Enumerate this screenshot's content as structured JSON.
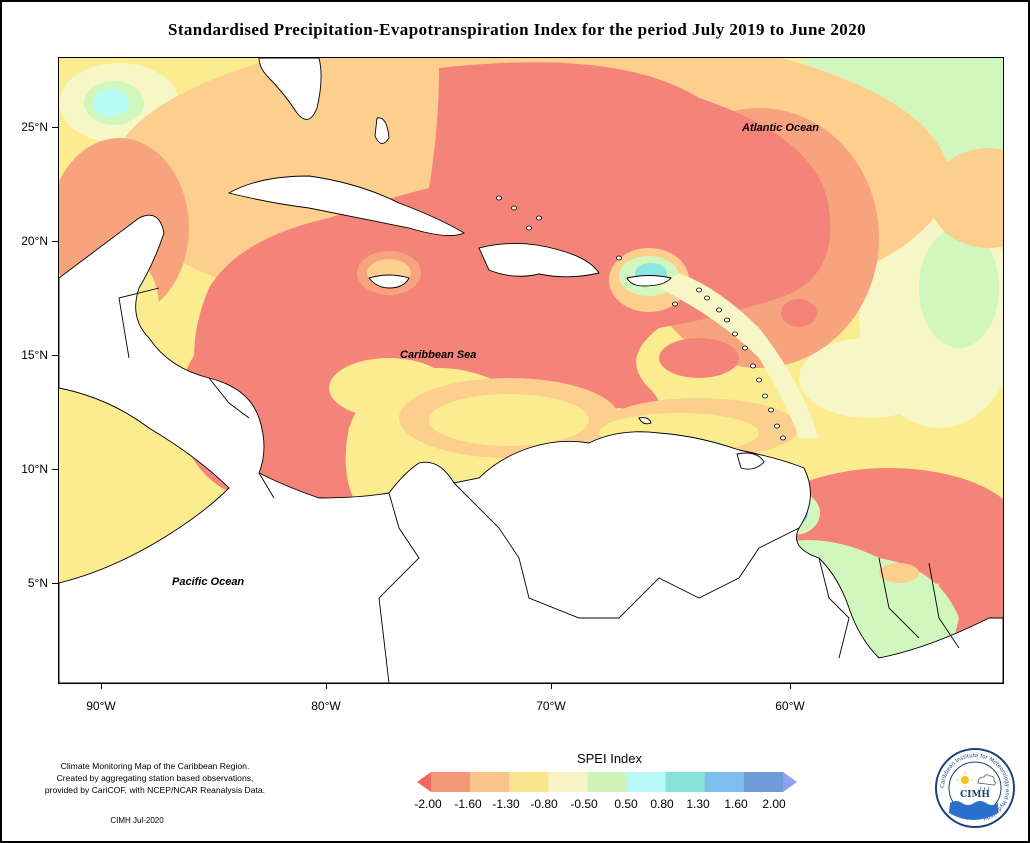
{
  "title": "Standardised Precipitation-Evapotranspiration Index for the period July 2019 to June 2020",
  "map": {
    "latitude_labels": [
      "25°N",
      "20°N",
      "15°N",
      "10°N",
      "5°N"
    ],
    "longitude_labels": [
      "90°W",
      "80°W",
      "70°W",
      "60°W"
    ],
    "ocean_labels": {
      "atlantic": "Atlantic Ocean",
      "caribbean": "Caribbean Sea",
      "pacific": "Pacific Ocean"
    },
    "colors": {
      "very_dry": "#f4837a",
      "dry": "#f7a47e",
      "moderately_dry": "#fccf8f",
      "slightly_dry": "#fbec90",
      "near_normal": "#f7f6c7",
      "slightly_wet": "#d2f7be",
      "moderately_wet": "#b9fbf6",
      "wet": "#8ae6e0",
      "very_wet": "#7dc6f5",
      "extremely_wet": "#7b8de3",
      "land": "#ffffff"
    }
  },
  "legend": {
    "title": "SPEI Index",
    "values": [
      "-2.00",
      "-1.60",
      "-1.30",
      "-0.80",
      "-0.50",
      "0.50",
      "0.80",
      "1.30",
      "1.60",
      "2.00"
    ],
    "colors": [
      "#f0695e",
      "#f39877",
      "#f9c58d",
      "#fbe58f",
      "#f7f3c6",
      "#cff3ba",
      "#b7f7f4",
      "#87e2da",
      "#7fbff0",
      "#6f9bd9",
      "#8ea0f2"
    ]
  },
  "footnote": {
    "line1": "Climate Monitoring Map of the Caribbean Region.",
    "line2": "Created by aggregating station based observations,",
    "line3": "provided by CariCOF, with NCEP/NCAR Reanalysis Data.",
    "credit": "CIMH Jul-2020"
  },
  "logo": {
    "name": "CIMH",
    "ring_text": "Caribbean Institute for Meteorology and Hydrology"
  }
}
